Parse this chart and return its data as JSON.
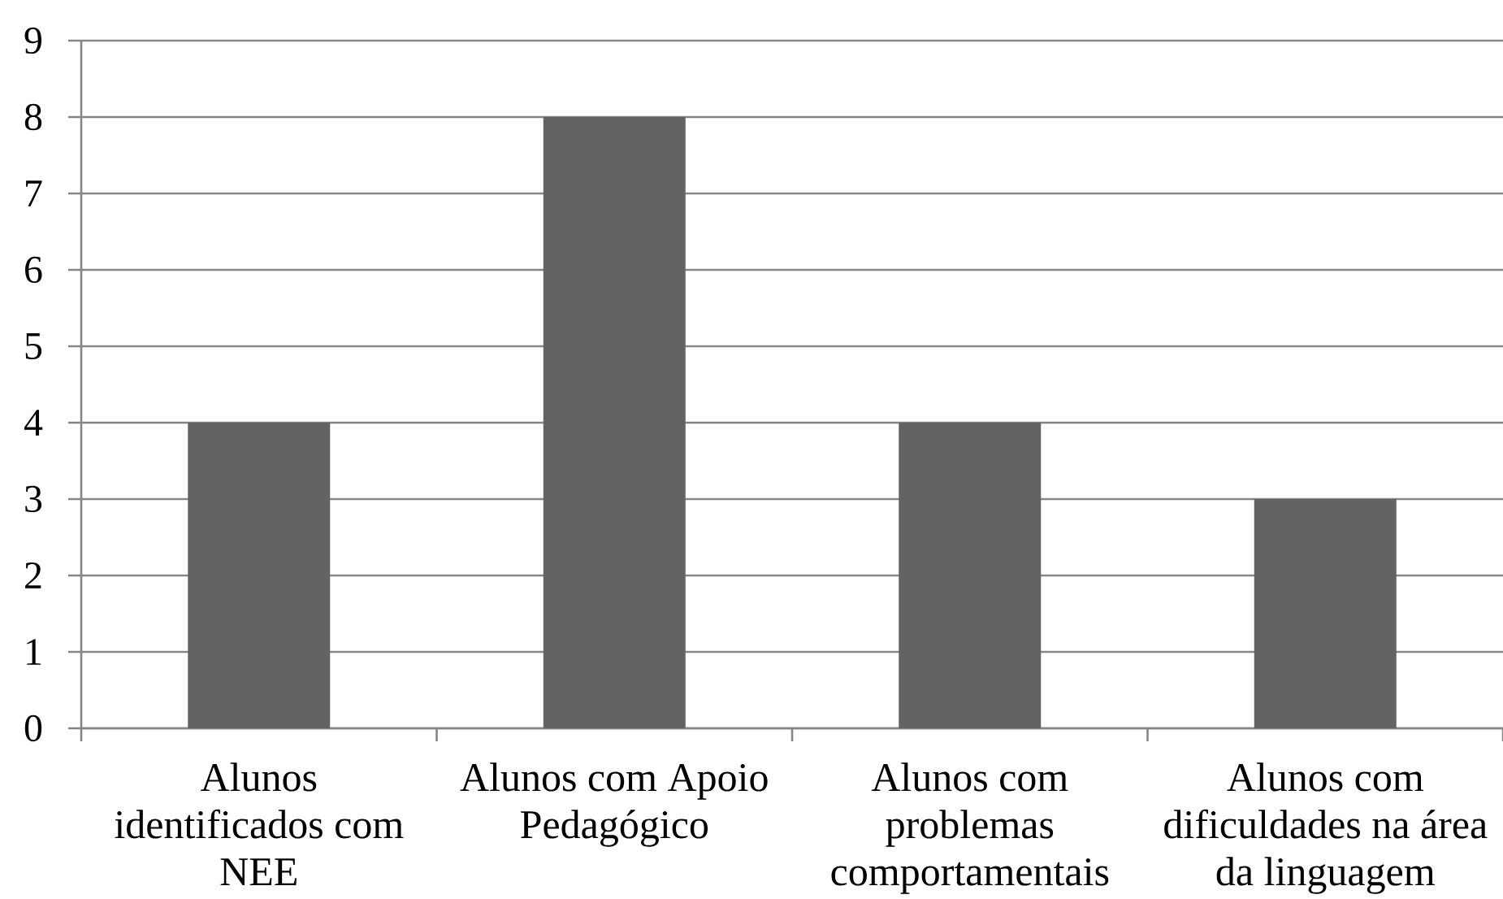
{
  "chart_data": {
    "type": "bar",
    "categories": [
      "Alunos identificados com NEE",
      "Alunos com Apoio Pedagógico",
      "Alunos com problemas comportamentais",
      "Alunos com dificuldades na área da linguagem"
    ],
    "values": [
      4,
      8,
      4,
      3
    ],
    "color": "#636363",
    "ylim": [
      0,
      9
    ],
    "yticks": [
      0,
      1,
      2,
      3,
      4,
      5,
      6,
      7,
      8,
      9
    ],
    "grid": "y"
  }
}
